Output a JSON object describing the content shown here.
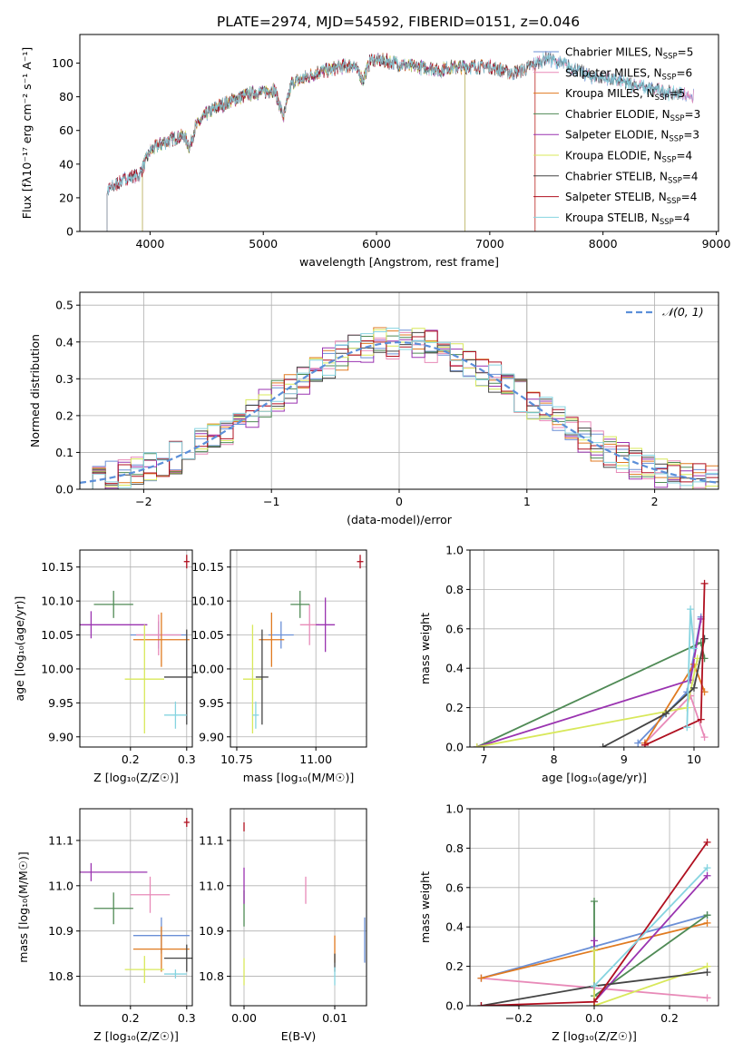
{
  "figure_title": "PLATE=2974, MJD=54592, FIBERID=0151, z=0.046",
  "model_colors": [
    "#6a8fd6",
    "#e88ab8",
    "#e07a20",
    "#4f8a55",
    "#9a33b0",
    "#d8e85a",
    "#444444",
    "#b01020",
    "#86d4e0"
  ],
  "chart_data": [
    {
      "id": "spectrum",
      "type": "line",
      "title": "PLATE=2974, MJD=54592, FIBERID=0151, z=0.046",
      "xlabel": "wavelength [Angstrom, rest frame]",
      "ylabel": "Flux [fλ10⁻¹⁷ erg cm⁻² s⁻¹ A⁻¹]",
      "xlim": [
        3380,
        9020
      ],
      "ylim": [
        0,
        117
      ],
      "xticks": [
        "4000",
        "5000",
        "6000",
        "7000",
        "8000",
        "9000"
      ],
      "yticks": [
        "0",
        "20",
        "40",
        "60",
        "80",
        "100"
      ],
      "legend": [
        "Chabrier MILES, N_SSP=5",
        "Salpeter MILES, N_SSP=6",
        "Kroupa MILES, N_SSP=5",
        "Chabrier ELODIE, N_SSP=3",
        "Salpeter ELODIE, N_SSP=3",
        "Kroupa ELODIE, N_SSP=4",
        "Chabrier STELIB, N_SSP=4",
        "Salpeter STELIB, N_SSP=4",
        "Kroupa STELIB, N_SSP=4"
      ],
      "legend_placement": "upper-right",
      "series_ranges": [
        [
          3620,
          8800
        ],
        [
          3620,
          8800
        ],
        [
          3930,
          7400
        ],
        [
          3930,
          6780
        ],
        [
          3930,
          6780
        ],
        [
          3930,
          6780
        ],
        [
          3620,
          8700
        ],
        [
          3620,
          7400
        ],
        [
          3620,
          8700
        ]
      ],
      "continuum_knots": [
        [
          3620,
          24
        ],
        [
          3700,
          28
        ],
        [
          3800,
          32
        ],
        [
          3900,
          33
        ],
        [
          3950,
          40
        ],
        [
          4000,
          48
        ],
        [
          4100,
          52
        ],
        [
          4200,
          55
        ],
        [
          4300,
          57
        ],
        [
          4350,
          50
        ],
        [
          4400,
          62
        ],
        [
          4500,
          70
        ],
        [
          4600,
          74
        ],
        [
          4700,
          77
        ],
        [
          4800,
          80
        ],
        [
          4900,
          82
        ],
        [
          5000,
          83
        ],
        [
          5100,
          84
        ],
        [
          5180,
          68
        ],
        [
          5250,
          88
        ],
        [
          5400,
          92
        ],
        [
          5500,
          95
        ],
        [
          5600,
          96
        ],
        [
          5700,
          98
        ],
        [
          5800,
          99
        ],
        [
          5880,
          90
        ],
        [
          5950,
          102
        ],
        [
          6100,
          101
        ],
        [
          6300,
          98
        ],
        [
          6500,
          97
        ],
        [
          6560,
          95
        ],
        [
          6600,
          97
        ],
        [
          6800,
          98
        ],
        [
          7000,
          98
        ],
        [
          7200,
          94
        ],
        [
          7300,
          96
        ],
        [
          7500,
          103
        ],
        [
          7700,
          98
        ],
        [
          7900,
          92
        ],
        [
          8100,
          90
        ],
        [
          8200,
          88
        ],
        [
          8400,
          85
        ],
        [
          8500,
          84
        ],
        [
          8600,
          82
        ],
        [
          8700,
          82
        ],
        [
          8800,
          80
        ]
      ],
      "ssp_points": [
        [
          3620,
          0
        ],
        [
          3930,
          0
        ],
        [
          6780,
          0
        ],
        [
          7400,
          0
        ]
      ]
    },
    {
      "id": "residuals",
      "type": "histogram",
      "xlabel": "(data-model)/error",
      "ylabel": "Normed distribution",
      "xlim": [
        -2.5,
        2.5
      ],
      "ylim": [
        0,
        0.535
      ],
      "xticks": [
        "−2",
        "−1",
        "0",
        "1",
        "2"
      ],
      "yticks": [
        "0.0",
        "0.1",
        "0.2",
        "0.3",
        "0.4",
        "0.5"
      ],
      "bin_width": 0.1,
      "legend": [
        "𝒩(0, 1)"
      ],
      "legend_placement": "upper-right",
      "reference_curve": "standard normal"
    },
    {
      "id": "z-age",
      "type": "scatter",
      "xlabel": "Z [log₁₀(Z/Z☉)]",
      "ylabel": "age  [log₁₀(age/yr)]",
      "xlim": [
        0.11,
        0.31
      ],
      "ylim": [
        9.885,
        10.175
      ],
      "xticks": [
        "0.2",
        "0.3"
      ],
      "yticks": [
        "9.90",
        "9.95",
        "10.00",
        "10.05",
        "10.10",
        "10.15"
      ],
      "points": [
        {
          "x": 0.25,
          "y": 10.05,
          "xerr": 0.05,
          "yerr": 0.02
        },
        {
          "x": 0.25,
          "y": 10.05,
          "xerr": 0.04,
          "yerr": 0.03
        },
        {
          "x": 0.255,
          "y": 10.043,
          "xerr": 0.05,
          "yerr": 0.04
        },
        {
          "x": 0.17,
          "y": 10.095,
          "xerr": 0.035,
          "yerr": 0.02
        },
        {
          "x": 0.13,
          "y": 10.065,
          "xerr": 0.1,
          "yerr": 0.02
        },
        {
          "x": 0.225,
          "y": 9.985,
          "xerr": 0.035,
          "yerr": 0.08
        },
        {
          "x": 0.3,
          "y": 9.988,
          "xerr": 0.04,
          "yerr": 0.07
        },
        {
          "x": 0.3,
          "y": 10.158,
          "xerr": 0.005,
          "yerr": 0.01
        },
        {
          "x": 0.28,
          "y": 9.932,
          "xerr": 0.02,
          "yerr": 0.02
        }
      ]
    },
    {
      "id": "mass-age",
      "type": "scatter",
      "xlabel": "mass [log₁₀(M/M☉)]",
      "ylabel": "",
      "xlim": [
        10.73,
        11.16
      ],
      "ylim": [
        9.885,
        10.175
      ],
      "xticks": [
        "10.75",
        "11.00"
      ],
      "yticks": [
        "9.90",
        "9.95",
        "10.00",
        "10.05",
        "10.10",
        "10.15"
      ],
      "points": [
        {
          "x": 10.89,
          "y": 10.05,
          "xerr": 0.04,
          "yerr": 0.02
        },
        {
          "x": 10.98,
          "y": 10.065,
          "xerr": 0.03,
          "yerr": 0.03
        },
        {
          "x": 10.86,
          "y": 10.043,
          "xerr": 0.04,
          "yerr": 0.04
        },
        {
          "x": 10.95,
          "y": 10.095,
          "xerr": 0.03,
          "yerr": 0.02
        },
        {
          "x": 11.03,
          "y": 10.065,
          "xerr": 0.03,
          "yerr": 0.04
        },
        {
          "x": 10.8,
          "y": 9.985,
          "xerr": 0.03,
          "yerr": 0.08
        },
        {
          "x": 10.83,
          "y": 9.988,
          "xerr": 0.02,
          "yerr": 0.07
        },
        {
          "x": 11.14,
          "y": 10.158,
          "xerr": 0.01,
          "yerr": 0.01
        },
        {
          "x": 10.81,
          "y": 9.932,
          "xerr": 0.01,
          "yerr": 0.02
        }
      ]
    },
    {
      "id": "age-weight",
      "type": "line",
      "xlabel": "age  [log₁₀(age/yr)]",
      "ylabel": "mass weight",
      "xlim": [
        6.8,
        10.35
      ],
      "ylim": [
        0,
        1
      ],
      "xticks": [
        "7",
        "8",
        "9",
        "10"
      ],
      "yticks": [
        "0.0",
        "0.2",
        "0.4",
        "0.6",
        "0.8",
        "1.0"
      ],
      "series": [
        {
          "points": [
            [
              9.2,
              0.02
            ],
            [
              9.9,
              0.28
            ],
            [
              10.1,
              0.66
            ]
          ]
        },
        {
          "points": [
            [
              9.3,
              0.02
            ],
            [
              9.95,
              0.26
            ],
            [
              10.15,
              0.05
            ]
          ]
        },
        {
          "points": [
            [
              9.3,
              0.02
            ],
            [
              10.0,
              0.42
            ],
            [
              10.15,
              0.28
            ]
          ]
        },
        {
          "points": [
            [
              6.9,
              0.0
            ],
            [
              10.1,
              0.53
            ],
            [
              10.15,
              0.45
            ]
          ]
        },
        {
          "points": [
            [
              6.9,
              0.0
            ],
            [
              9.95,
              0.34
            ],
            [
              10.1,
              0.65
            ]
          ]
        },
        {
          "points": [
            [
              6.9,
              0.0
            ],
            [
              9.9,
              0.2
            ],
            [
              10.05,
              0.45
            ]
          ]
        },
        {
          "points": [
            [
              8.7,
              0.0
            ],
            [
              9.6,
              0.17
            ],
            [
              10.0,
              0.3
            ],
            [
              10.15,
              0.55
            ]
          ]
        },
        {
          "points": [
            [
              9.3,
              0.01
            ],
            [
              10.1,
              0.14
            ],
            [
              10.15,
              0.83
            ]
          ]
        },
        {
          "points": [
            [
              9.9,
              0.1
            ],
            [
              9.95,
              0.7
            ],
            [
              10.0,
              0.5
            ]
          ]
        }
      ]
    },
    {
      "id": "z-mass",
      "type": "scatter",
      "xlabel": "Z [log₁₀(Z/Z☉)]",
      "ylabel": "mass [log₁₀(M/M☉)]",
      "xlim": [
        0.11,
        0.31
      ],
      "ylim": [
        10.735,
        11.17
      ],
      "xticks": [
        "0.2",
        "0.3"
      ],
      "yticks": [
        "10.8",
        "10.9",
        "11.0",
        "11.1"
      ],
      "points": [
        {
          "x": 0.255,
          "y": 10.89,
          "xerr": 0.05,
          "yerr": 0.04
        },
        {
          "x": 0.235,
          "y": 10.98,
          "xerr": 0.035,
          "yerr": 0.04
        },
        {
          "x": 0.255,
          "y": 10.86,
          "xerr": 0.05,
          "yerr": 0.05
        },
        {
          "x": 0.17,
          "y": 10.95,
          "xerr": 0.035,
          "yerr": 0.035
        },
        {
          "x": 0.13,
          "y": 11.03,
          "xerr": 0.1,
          "yerr": 0.02
        },
        {
          "x": 0.225,
          "y": 10.815,
          "xerr": 0.035,
          "yerr": 0.03
        },
        {
          "x": 0.3,
          "y": 10.84,
          "xerr": 0.04,
          "yerr": 0.03
        },
        {
          "x": 0.3,
          "y": 11.14,
          "xerr": 0.005,
          "yerr": 0.01
        },
        {
          "x": 0.28,
          "y": 10.805,
          "xerr": 0.02,
          "yerr": 0.01
        }
      ]
    },
    {
      "id": "ebv-mass",
      "type": "scatter",
      "xlabel": "E(B-V)",
      "ylabel": "",
      "xlim": [
        -0.0015,
        0.0135
      ],
      "ylim": [
        10.735,
        11.17
      ],
      "xticks": [
        "0.00",
        "0.01"
      ],
      "yticks": [
        "10.8",
        "10.9",
        "11.0",
        "11.1"
      ],
      "points": [
        {
          "x": 0.0133,
          "y": 10.88,
          "xerr": 0,
          "yerr": 0.05
        },
        {
          "x": 0.0068,
          "y": 10.99,
          "xerr": 0,
          "yerr": 0.03
        },
        {
          "x": 0.01,
          "y": 10.86,
          "xerr": 0,
          "yerr": 0.03
        },
        {
          "x": 0.0,
          "y": 10.95,
          "xerr": 0,
          "yerr": 0.04
        },
        {
          "x": 0.0,
          "y": 11.0,
          "xerr": 0,
          "yerr": 0.04
        },
        {
          "x": 0.0,
          "y": 10.81,
          "xerr": 0,
          "yerr": 0.03
        },
        {
          "x": 0.01,
          "y": 10.83,
          "xerr": 0,
          "yerr": 0.02
        },
        {
          "x": 0.0,
          "y": 11.13,
          "xerr": 0,
          "yerr": 0.01
        },
        {
          "x": 0.01,
          "y": 10.8,
          "xerr": 0,
          "yerr": 0.02
        }
      ]
    },
    {
      "id": "z-weight",
      "type": "line",
      "xlabel": "Z [log₁₀(Z/Z☉)]",
      "ylabel": "mass weight",
      "xlim": [
        -0.33,
        0.33
      ],
      "ylim": [
        0,
        1
      ],
      "xticks": [
        "−0.2",
        "0.0",
        "0.2"
      ],
      "yticks": [
        "0.0",
        "0.2",
        "0.4",
        "0.6",
        "0.8",
        "1.0"
      ],
      "series": [
        {
          "points": [
            [
              -0.3,
              0.14
            ],
            [
              0.0,
              0.3
            ],
            [
              0.3,
              0.46
            ]
          ]
        },
        {
          "points": [
            [
              -0.3,
              0.14
            ],
            [
              0.3,
              0.04
            ]
          ]
        },
        {
          "points": [
            [
              -0.3,
              0.14
            ],
            [
              0.3,
              0.42
            ]
          ]
        },
        {
          "points": [
            [
              0.0,
              0.53
            ],
            [
              0.0,
              0.05
            ],
            [
              0.3,
              0.46
            ]
          ]
        },
        {
          "points": [
            [
              0.0,
              0.33
            ],
            [
              0.0,
              0.02
            ],
            [
              0.3,
              0.66
            ]
          ]
        },
        {
          "points": [
            [
              0.0,
              0.28
            ],
            [
              0.0,
              0.0
            ],
            [
              0.3,
              0.2
            ]
          ]
        },
        {
          "points": [
            [
              -0.3,
              0.0
            ],
            [
              0.0,
              0.1
            ],
            [
              0.3,
              0.17
            ]
          ]
        },
        {
          "points": [
            [
              -0.3,
              0.0
            ],
            [
              0.0,
              0.02
            ],
            [
              0.3,
              0.83
            ]
          ]
        },
        {
          "points": [
            [
              0.0,
              0.1
            ],
            [
              0.3,
              0.7
            ]
          ]
        }
      ]
    }
  ]
}
